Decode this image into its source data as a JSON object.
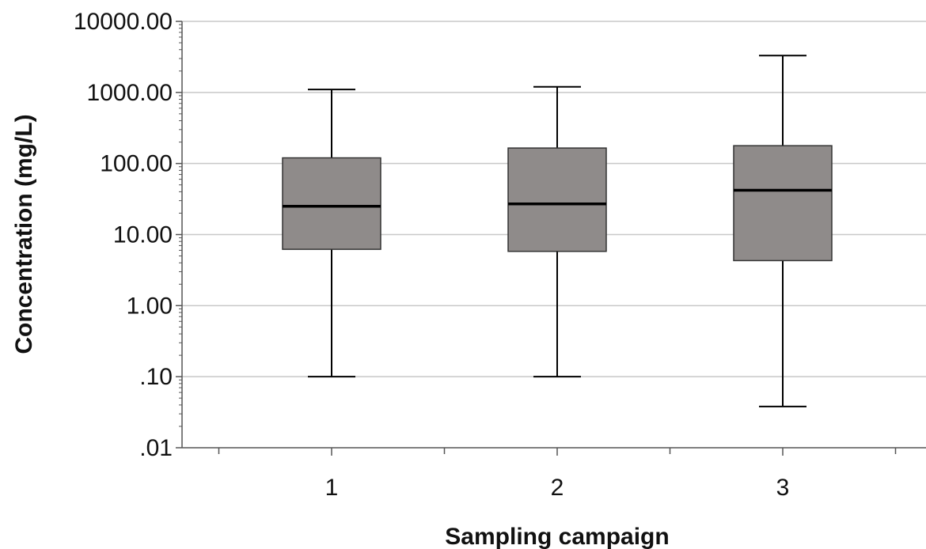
{
  "chart_data": {
    "type": "box",
    "xlabel": "Sampling campaign",
    "ylabel": "Concentration (mg/L)",
    "y_scale": "log",
    "ylim": [
      0.01,
      10000
    ],
    "grid": "horizontal",
    "y_ticks": [
      {
        "value": 0.01,
        "label": ".01"
      },
      {
        "value": 0.1,
        "label": ".10"
      },
      {
        "value": 1,
        "label": "1.00"
      },
      {
        "value": 10,
        "label": "10.00"
      },
      {
        "value": 100,
        "label": "100.00"
      },
      {
        "value": 1000,
        "label": "1000.00"
      },
      {
        "value": 10000,
        "label": "10000.00"
      }
    ],
    "categories": [
      "1",
      "2",
      "3"
    ],
    "boxes": [
      {
        "category": "1",
        "min": 0.1,
        "q1": 6.2,
        "median": 25,
        "q3": 120,
        "max": 1100
      },
      {
        "category": "2",
        "min": 0.1,
        "q1": 5.8,
        "median": 27,
        "q3": 165,
        "max": 1200
      },
      {
        "category": "3",
        "min": 0.038,
        "q1": 4.3,
        "median": 42,
        "q3": 178,
        "max": 3300
      }
    ],
    "colors": {
      "box_fill": "#8f8b8a",
      "line": "#000000",
      "grid": "#c8c8c8",
      "axis": "#555555"
    }
  }
}
